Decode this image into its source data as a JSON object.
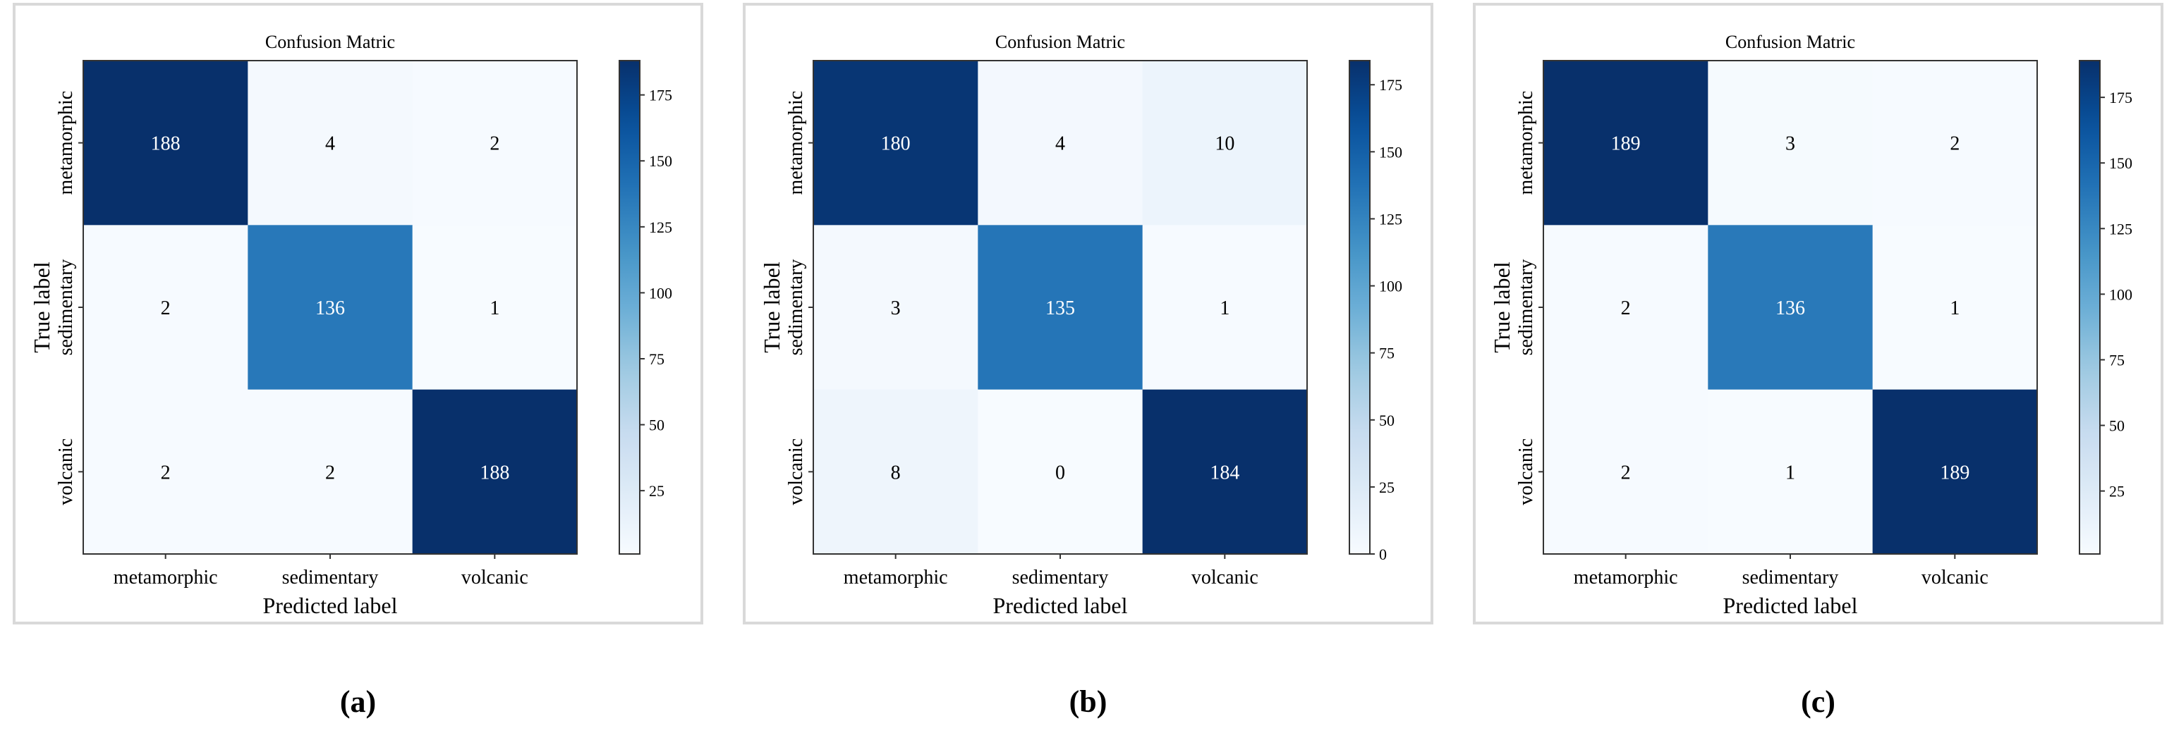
{
  "chart_data": [
    {
      "type": "heatmap",
      "title": "Confusion Matric",
      "xlabel": "Predicted label",
      "ylabel": "True label",
      "x_categories": [
        "metamorphic",
        "sedimentary",
        "volcanic"
      ],
      "y_categories": [
        "metamorphic",
        "sedimentary",
        "volcanic"
      ],
      "values": [
        [
          188,
          4,
          2
        ],
        [
          2,
          136,
          1
        ],
        [
          2,
          2,
          188
        ]
      ],
      "colorbar": {
        "colormap": "Blues",
        "range": [
          1,
          188
        ],
        "ticks": [
          "25",
          "50",
          "75",
          "100",
          "125",
          "150",
          "175"
        ]
      },
      "caption": "(a)"
    },
    {
      "type": "heatmap",
      "title": "Confusion Matric",
      "xlabel": "Predicted label",
      "ylabel": "True label",
      "x_categories": [
        "metamorphic",
        "sedimentary",
        "volcanic"
      ],
      "y_categories": [
        "metamorphic",
        "sedimentary",
        "volcanic"
      ],
      "values": [
        [
          180,
          4,
          10
        ],
        [
          3,
          135,
          1
        ],
        [
          8,
          0,
          184
        ]
      ],
      "colorbar": {
        "colormap": "Blues",
        "range": [
          0,
          184
        ],
        "ticks": [
          "0",
          "25",
          "50",
          "75",
          "100",
          "125",
          "150",
          "175"
        ]
      },
      "caption": "(b)"
    },
    {
      "type": "heatmap",
      "title": "Confusion Matric",
      "xlabel": "Predicted label",
      "ylabel": "True label",
      "x_categories": [
        "metamorphic",
        "sedimentary",
        "volcanic"
      ],
      "y_categories": [
        "metamorphic",
        "sedimentary",
        "volcanic"
      ],
      "values": [
        [
          189,
          3,
          2
        ],
        [
          2,
          136,
          1
        ],
        [
          2,
          1,
          189
        ]
      ],
      "colorbar": {
        "colormap": "Blues",
        "range": [
          1,
          189
        ],
        "ticks": [
          "25",
          "50",
          "75",
          "100",
          "125",
          "150",
          "175"
        ]
      },
      "caption": "(c)"
    }
  ]
}
